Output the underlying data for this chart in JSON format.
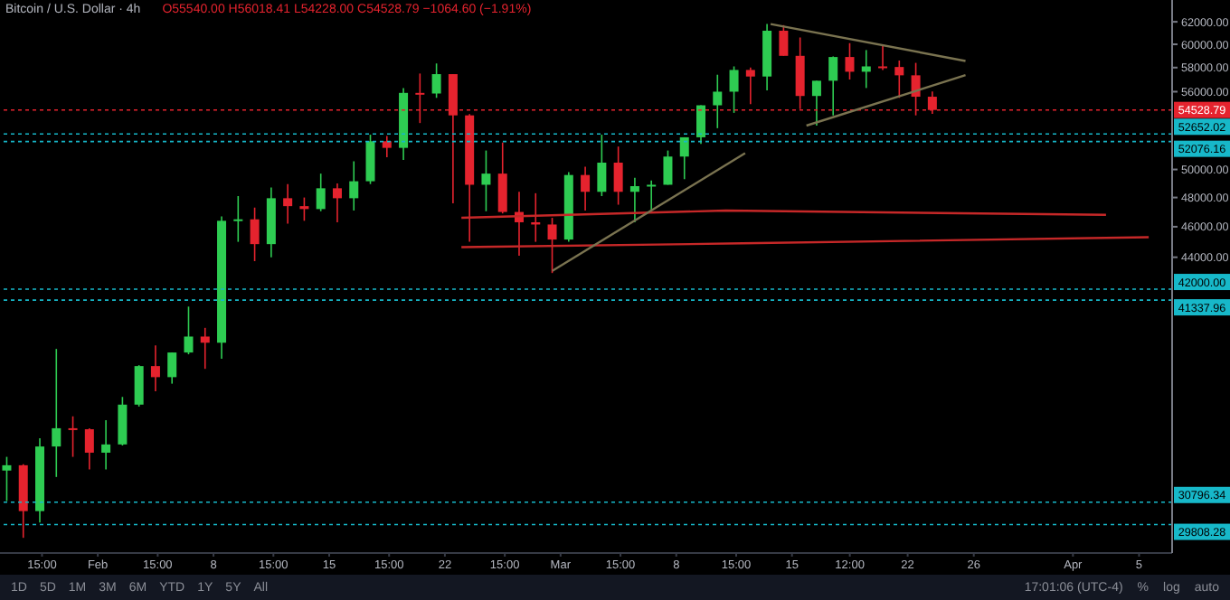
{
  "chart_data": {
    "type": "candlestick",
    "title": "Bitcoin / U.S. Dollar · 4h",
    "annotations": [
      "O55540.00 H56018.41 L54228.00 C54528.79 −1064.60 (−1.91%)",
      "1D",
      "5D",
      "1M",
      "3M",
      "6M",
      "YTD",
      "1Y",
      "5Y",
      "All",
      "17:01:06 (UTC-4)",
      "%",
      "log",
      "auto"
    ],
    "x": [
      "--01-26T12:00",
      "--01-27T12:00",
      "--01-28T12:00",
      "--01-29T12:00",
      "--01-30T12:00",
      "--01-31T12:00",
      "--02-01T12:00",
      "--02-02T12:00",
      "--02-03T12:00",
      "--02-04T12:00",
      "--02-05T12:00",
      "--02-06T12:00",
      "--02-07T12:00",
      "--02-08T12:00",
      "--02-09T12:00",
      "--02-10T12:00",
      "--02-11T12:00",
      "--02-12T12:00",
      "--02-13T12:00",
      "--02-14T12:00",
      "--02-15T12:00",
      "--02-16T12:00",
      "--02-17T12:00",
      "--02-18T12:00",
      "--02-19T12:00",
      "--02-20T12:00",
      "--02-21T12:00",
      "--02-22T12:00",
      "--02-23T12:00",
      "--02-24T12:00",
      "--02-25T12:00",
      "--02-26T12:00",
      "--02-27T12:00",
      "--02-28T12:00",
      "--03-01T12:00",
      "--03-02T12:00",
      "--03-03T12:00",
      "--03-04T12:00",
      "--03-05T12:00",
      "--03-06T12:00",
      "--03-07T12:00",
      "--03-08T12:00",
      "--03-09T12:00",
      "--03-10T12:00",
      "--03-11T12:00",
      "--03-12T12:00",
      "--03-13T12:00",
      "--03-14T12:00",
      "--03-15T12:00",
      "--03-16T12:00",
      "--03-17T12:00",
      "--03-18T12:00",
      "--03-19T12:00",
      "--03-20T12:00",
      "--03-21T12:00",
      "--03-22T12:00",
      "--03-23T12:00"
    ],
    "ohlc": [
      [
        32250,
        32900,
        30850,
        32500
      ],
      [
        32500,
        32550,
        29240,
        30400
      ],
      [
        30400,
        33800,
        29900,
        33400
      ],
      [
        33400,
        38500,
        31950,
        34300
      ],
      [
        34300,
        34900,
        32900,
        34250
      ],
      [
        34250,
        34300,
        32300,
        33100
      ],
      [
        33100,
        34700,
        32300,
        33500
      ],
      [
        33500,
        35900,
        33450,
        35500
      ],
      [
        35500,
        37600,
        35400,
        37550
      ],
      [
        37550,
        38700,
        36200,
        36950
      ],
      [
        36950,
        38300,
        36600,
        38300
      ],
      [
        38300,
        40950,
        38200,
        39200
      ],
      [
        39200,
        39700,
        37400,
        38850
      ],
      [
        38850,
        46700,
        37950,
        46400
      ],
      [
        46400,
        48100,
        45000,
        46500
      ],
      [
        46500,
        47300,
        43750,
        44850
      ],
      [
        44850,
        48700,
        44000,
        47950
      ],
      [
        47950,
        48950,
        46200,
        47400
      ],
      [
        47400,
        48000,
        46400,
        47200
      ],
      [
        47200,
        49700,
        47050,
        48650
      ],
      [
        48650,
        49000,
        46300,
        47950
      ],
      [
        47950,
        50600,
        47100,
        49150
      ],
      [
        49150,
        52600,
        48950,
        52100
      ],
      [
        52100,
        52500,
        50900,
        51600
      ],
      [
        51600,
        56300,
        50700,
        55900
      ],
      [
        55900,
        57500,
        53500,
        55850
      ],
      [
        55850,
        58350,
        55500,
        57450
      ],
      [
        57450,
        57450,
        47600,
        54100
      ],
      [
        54100,
        54200,
        45000,
        48900
      ],
      [
        48900,
        51400,
        47050,
        49700
      ],
      [
        49700,
        52000,
        46900,
        47000
      ],
      [
        47000,
        48400,
        44100,
        46300
      ],
      [
        46300,
        48300,
        45000,
        46150
      ],
      [
        46150,
        46600,
        43000,
        45150
      ],
      [
        45150,
        49800,
        45000,
        49600
      ],
      [
        49600,
        50200,
        47100,
        48400
      ],
      [
        48400,
        52600,
        48100,
        50500
      ],
      [
        50500,
        51700,
        47500,
        48400
      ],
      [
        48400,
        49400,
        46300,
        48800
      ],
      [
        48800,
        49200,
        47100,
        48900
      ],
      [
        48900,
        51400,
        48900,
        50950
      ],
      [
        50950,
        52400,
        49300,
        52400
      ],
      [
        52400,
        54900,
        51900,
        54900
      ],
      [
        54900,
        57400,
        53100,
        56000
      ],
      [
        56000,
        58100,
        54300,
        57800
      ],
      [
        57800,
        58000,
        55000,
        57250
      ],
      [
        57250,
        61800,
        56100,
        61200
      ],
      [
        61200,
        61700,
        59000,
        59000
      ],
      [
        59000,
        60600,
        54600,
        55650
      ],
      [
        55650,
        56900,
        53300,
        56900
      ],
      [
        56900,
        58950,
        54100,
        58900
      ],
      [
        58900,
        60100,
        57000,
        57650
      ],
      [
        57650,
        59500,
        56300,
        58100
      ],
      [
        58100,
        59900,
        57800,
        58050
      ],
      [
        58050,
        58600,
        55500,
        57350
      ],
      [
        57350,
        58400,
        54100,
        55590
      ],
      [
        55590,
        56018,
        54228,
        54528.79
      ]
    ],
    "colors": [
      "#2ecc52",
      "#e5232e",
      "#2ecc52",
      "#2ecc52",
      "#e5232e",
      "#e5232e",
      "#2ecc52",
      "#2ecc52",
      "#2ecc52",
      "#e5232e",
      "#2ecc52",
      "#2ecc52",
      "#e5232e",
      "#2ecc52",
      "#2ecc52",
      "#e5232e",
      "#2ecc52",
      "#e5232e",
      "#e5232e",
      "#2ecc52",
      "#e5232e",
      "#2ecc52",
      "#2ecc52",
      "#e5232e",
      "#2ecc52",
      "#e5232e",
      "#2ecc52",
      "#e5232e",
      "#e5232e",
      "#2ecc52",
      "#e5232e",
      "#e5232e",
      "#e5232e",
      "#e5232e",
      "#2ecc52",
      "#e5232e",
      "#2ecc52",
      "#e5232e",
      "#2ecc52",
      "#2ecc52",
      "#2ecc52",
      "#2ecc52",
      "#2ecc52",
      "#2ecc52",
      "#2ecc52",
      "#e5232e",
      "#2ecc52",
      "#e5232e",
      "#e5232e",
      "#2ecc52",
      "#2ecc52",
      "#e5232e",
      "#2ecc52",
      "#e5232e",
      "#e5232e",
      "#e5232e",
      "#e5232e"
    ],
    "series": [
      {
        "type": "line",
        "color": "#c62828",
        "x": [
          "--02-23T00:00",
          "--03-11T00:00",
          "--04-03T00:00"
        ],
        "values": [
          46600,
          47100,
          46800
        ]
      },
      {
        "type": "line",
        "color": "#c62828",
        "x": [
          "--02-23T00:00",
          "--03-12T00:00",
          "--04-05T14:00"
        ],
        "values": [
          44650,
          44900,
          45300
        ]
      },
      {
        "type": "line",
        "color": "#7a7350",
        "x": [
          "--02-28T12:00",
          "--03-12T04:00"
        ],
        "values": [
          43140,
          51200
        ]
      },
      {
        "type": "line",
        "color": "#7a7350",
        "x": [
          "--03-13T17:00",
          "--03-25T12:00"
        ],
        "values": [
          61800,
          58560
        ]
      },
      {
        "type": "line",
        "color": "#7a7350",
        "x": [
          "--03-15T21:00",
          "--03-25T12:00"
        ],
        "values": [
          53300,
          57360
        ]
      }
    ],
    "ref_lines": [
      {
        "axis": "y",
        "value": 54528.79,
        "label": "54528.79",
        "color": "#e5232e",
        "line_style": "dotted"
      },
      {
        "axis": "y",
        "value": 52652.02,
        "label": "52652.02",
        "color": "#17b8c9",
        "line_style": "dotted"
      },
      {
        "axis": "y",
        "value": 52076.16,
        "label": "52076.16",
        "color": "#17b8c9",
        "line_style": "dotted"
      },
      {
        "axis": "y",
        "value": 42000,
        "label": "42000.00",
        "color": "#17b8c9",
        "line_style": "dotted"
      },
      {
        "axis": "y",
        "value": 41337.96,
        "label": "41337.96",
        "color": "#17b8c9",
        "line_style": "dotted"
      },
      {
        "axis": "y",
        "value": 30796.34,
        "label": "30796.34",
        "color": "#17b8c9",
        "line_style": "dotted"
      },
      {
        "axis": "y",
        "value": 29808.28,
        "label": "29808.28",
        "color": "#17b8c9",
        "line_style": "dotted"
      }
    ],
    "log": true,
    "xlim": [
      "--01-26T02:00",
      "--04-07T00:00"
    ],
    "xticks": [
      {
        "value": "--01-28T15:00",
        "label": "15:00"
      },
      {
        "value": "--02-01T00:00",
        "label": "Feb"
      },
      {
        "value": "--02-04T15:00",
        "label": "15:00"
      },
      {
        "value": "--02-08T00:00",
        "label": "8"
      },
      {
        "value": "--02-11T15:00",
        "label": "15:00"
      },
      {
        "value": "--02-15T00:00",
        "label": "15"
      },
      {
        "value": "--02-18T15:00",
        "label": "15:00"
      },
      {
        "value": "--02-22T00:00",
        "label": "22"
      },
      {
        "value": "--02-25T15:00",
        "label": "15:00"
      },
      {
        "value": "--03-01T00:00",
        "label": "Mar"
      },
      {
        "value": "--03-04T15:00",
        "label": "15:00"
      },
      {
        "value": "--03-08T00:00",
        "label": "8"
      },
      {
        "value": "--03-11T15:00",
        "label": "15:00"
      },
      {
        "value": "--03-15T00:00",
        "label": "15"
      },
      {
        "value": "--03-18T12:00",
        "label": "12:00"
      },
      {
        "value": "--03-22T00:00",
        "label": "22"
      },
      {
        "value": "--03-26T00:00",
        "label": "26"
      },
      {
        "value": "--04-01T00:00",
        "label": "Apr"
      },
      {
        "value": "--04-05T00:00",
        "label": "5"
      }
    ],
    "ylim": [
      28600,
      64000
    ],
    "yticks": [
      {
        "value": 44000,
        "label": "44000.00"
      },
      {
        "value": 46000,
        "label": "46000.00"
      },
      {
        "value": 48000,
        "label": "48000.00"
      },
      {
        "value": 50000,
        "label": "50000.00"
      },
      {
        "value": 56000,
        "label": "56000.00"
      },
      {
        "value": 58000,
        "label": "58000.00"
      },
      {
        "value": 60000,
        "label": "60000.00"
      },
      {
        "value": 62000,
        "label": "62000.00"
      }
    ]
  }
}
